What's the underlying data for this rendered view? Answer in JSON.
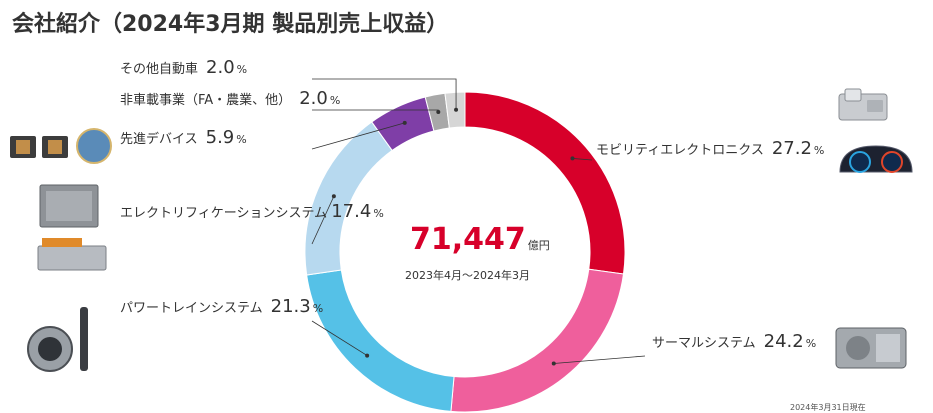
{
  "header": {
    "title": "会社紹介（2024年3月期 製品別売上収益）"
  },
  "center": {
    "value": "71,447",
    "unit": "億円",
    "period": "2023年4月～2024年3月"
  },
  "footnote": "2024年3月31日現在",
  "unit_label": "%",
  "chart_data": {
    "type": "pie",
    "title": "会社紹介（2024年3月期 製品別売上収益）",
    "total": 71447,
    "total_unit": "億円",
    "period": "2023年4月～2024年3月",
    "slices": [
      {
        "name": "モビリティエレクトロニクス",
        "value": 27.2,
        "color": "#d7002a"
      },
      {
        "name": "サーマルシステム",
        "value": 24.2,
        "color": "#ef5f9c"
      },
      {
        "name": "パワートレインシステム",
        "value": 21.3,
        "color": "#55c1e7"
      },
      {
        "name": "エレクトリフィケーションシステム",
        "value": 17.4,
        "color": "#b7d9ef"
      },
      {
        "name": "先進デバイス",
        "value": 5.9,
        "color": "#7f3ea7"
      },
      {
        "name": "非車載事業（FA・農業、他）",
        "value": 2.0,
        "color": "#a8a8a8"
      },
      {
        "name": "その他自動車",
        "value": 2.0,
        "color": "#d6d6d6"
      }
    ]
  },
  "images": [
    {
      "icon": "inverter-module-icon"
    },
    {
      "icon": "instrument-cluster-icon"
    },
    {
      "icon": "semiconductor-wafer-icon"
    },
    {
      "icon": "power-control-unit-icon"
    },
    {
      "icon": "battery-pack-icon"
    },
    {
      "icon": "throttle-body-injector-icon"
    },
    {
      "icon": "hvac-unit-icon"
    }
  ]
}
